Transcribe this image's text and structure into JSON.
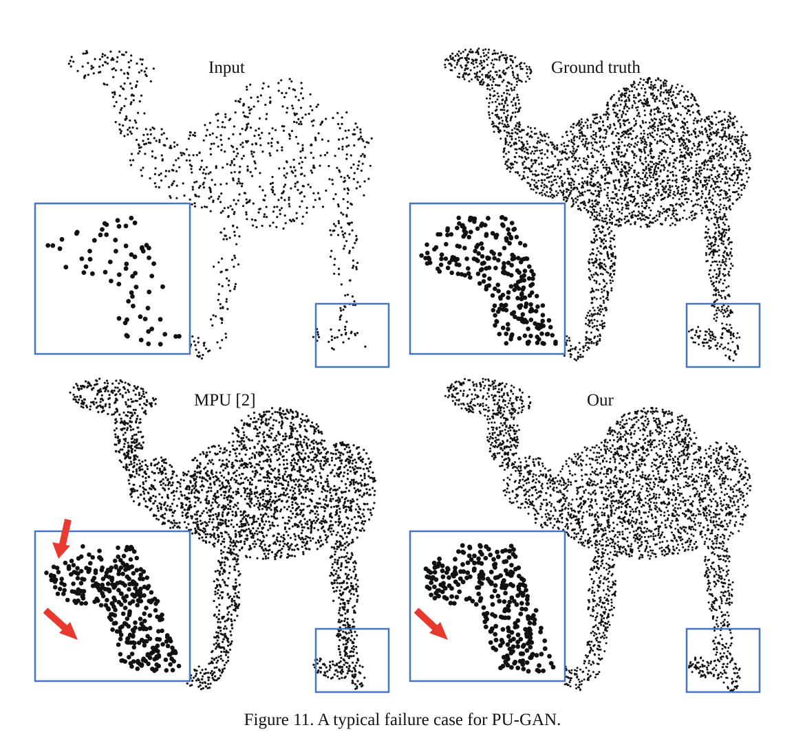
{
  "panels": [
    {
      "id": "input",
      "label": "Input",
      "density": "sparse",
      "highlight": ""
    },
    {
      "id": "ground-truth",
      "label": "Ground truth",
      "density": "dense",
      "highlight": ""
    },
    {
      "id": "mpu",
      "label": "MPU [2]",
      "density": "dense-noisy",
      "highlight": "artifacts"
    },
    {
      "id": "ours",
      "label": "Our",
      "density": "dense-failure",
      "highlight": "failure"
    }
  ],
  "caption": "Figure 11. A typical failure case for PU-GAN.",
  "colors": {
    "inset_border": "#4472c4",
    "arrow": "#e8392f",
    "points": "#111111"
  }
}
